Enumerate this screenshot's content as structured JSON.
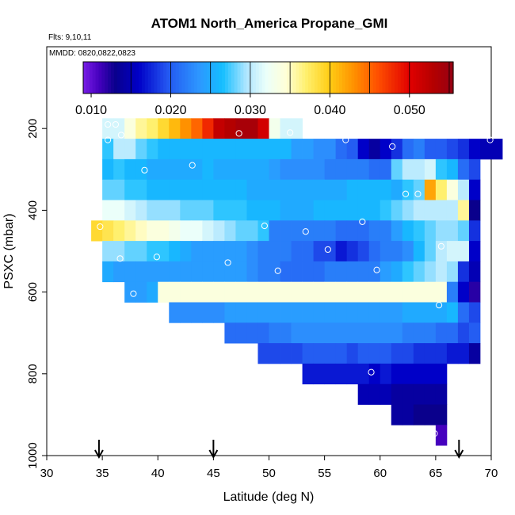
{
  "chart_data": {
    "type": "heatmap",
    "title": "ATOM1 North_America Propane_GMI",
    "notes": [
      "Flts: 9,10,11",
      "MMDD: 0820,0822,0823"
    ],
    "xlabel": "Latitude (deg N)",
    "ylabel": "PSXC (mbar)",
    "xlim": [
      30,
      70
    ],
    "ylim": [
      1000,
      0
    ],
    "xticks": [
      30,
      35,
      40,
      45,
      50,
      55,
      60,
      65,
      70
    ],
    "yticks": [
      200,
      400,
      600,
      800,
      1000
    ],
    "colorbar": {
      "min": 0.009,
      "max": 0.0555,
      "ticks": [
        0.01,
        0.02,
        0.03,
        0.04,
        0.05
      ],
      "tick_labels": [
        "0.010",
        "0.020",
        "0.030",
        "0.040",
        "0.050"
      ],
      "major_lines": [
        0.015,
        0.02,
        0.025,
        0.03,
        0.035,
        0.04,
        0.045,
        0.05,
        0.055
      ]
    },
    "cell_size": {
      "lat": 1,
      "pressure": 50
    },
    "rows": [
      {
        "pressure": 200,
        "start": 35,
        "values": [
          0.031,
          0.031,
          0.034,
          0.036,
          0.037,
          0.039,
          0.041,
          0.043,
          0.045,
          0.048,
          0.052,
          0.053,
          0.054,
          0.054,
          0.051,
          0.033,
          0.031,
          0.031
        ]
      },
      {
        "pressure": 250,
        "start": 35,
        "values": [
          0.027,
          0.03,
          0.03,
          0.028,
          0.027,
          0.026,
          0.026,
          0.026,
          0.026,
          0.026,
          0.026,
          0.026,
          0.026,
          0.026,
          0.026,
          0.026,
          0.026,
          0.024,
          0.024,
          0.023,
          0.023,
          0.021,
          0.02,
          0.016,
          0.014,
          0.016,
          0.018,
          0.021,
          0.022,
          0.02,
          0.02,
          0.019,
          0.018,
          0.016,
          0.015,
          0.015
        ]
      },
      {
        "pressure": 300,
        "start": 35,
        "values": [
          0.026,
          0.027,
          0.026,
          0.026,
          0.025,
          0.025,
          0.025,
          0.025,
          0.025,
          0.026,
          0.025,
          0.025,
          0.025,
          0.025,
          0.025,
          0.024,
          0.023,
          0.023,
          0.023,
          0.023,
          0.022,
          0.022,
          0.022,
          0.022,
          0.021,
          0.021,
          0.028,
          0.03,
          0.03,
          0.031,
          0.027,
          0.026,
          0.021,
          0.019
        ]
      },
      {
        "pressure": 350,
        "start": 35,
        "values": [
          0.028,
          0.028,
          0.027,
          0.027,
          0.026,
          0.026,
          0.026,
          0.026,
          0.026,
          0.026,
          0.026,
          0.026,
          0.026,
          0.025,
          0.025,
          0.025,
          0.025,
          0.025,
          0.025,
          0.025,
          0.025,
          0.025,
          0.026,
          0.026,
          0.026,
          0.026,
          0.025,
          0.027,
          0.028,
          0.042,
          0.037,
          0.034,
          0.03,
          0.016
        ]
      },
      {
        "pressure": 400,
        "start": 35,
        "values": [
          0.032,
          0.032,
          0.031,
          0.03,
          0.029,
          0.029,
          0.029,
          0.028,
          0.028,
          0.028,
          0.027,
          0.027,
          0.027,
          0.026,
          0.026,
          0.026,
          0.025,
          0.025,
          0.025,
          0.026,
          0.026,
          0.026,
          0.026,
          0.026,
          0.026,
          0.027,
          0.028,
          0.029,
          0.03,
          0.03,
          0.03,
          0.03,
          0.036,
          0.013
        ]
      },
      {
        "pressure": 450,
        "start": 34,
        "values": [
          0.039,
          0.038,
          0.037,
          0.036,
          0.035,
          0.034,
          0.034,
          0.033,
          0.032,
          0.032,
          0.031,
          0.03,
          0.029,
          0.028,
          0.028,
          0.027,
          0.022,
          0.022,
          0.022,
          0.022,
          0.022,
          0.022,
          0.021,
          0.021,
          0.021,
          0.022,
          0.022,
          0.024,
          0.026,
          0.027,
          0.028,
          0.029,
          0.029,
          0.028,
          0.018
        ]
      },
      {
        "pressure": 500,
        "start": 35,
        "values": [
          0.029,
          0.029,
          0.028,
          0.028,
          0.027,
          0.027,
          0.026,
          0.025,
          0.024,
          0.024,
          0.024,
          0.024,
          0.024,
          0.023,
          0.022,
          0.022,
          0.022,
          0.021,
          0.021,
          0.019,
          0.019,
          0.017,
          0.018,
          0.019,
          0.021,
          0.022,
          0.022,
          0.023,
          0.026,
          0.028,
          0.03,
          0.031,
          0.031,
          0.016
        ]
      },
      {
        "pressure": 550,
        "start": 35,
        "values": [
          0.025,
          0.024,
          0.024,
          0.024,
          0.024,
          0.024,
          0.024,
          0.024,
          0.024,
          0.024,
          0.024,
          0.024,
          0.024,
          0.023,
          0.022,
          0.022,
          0.021,
          0.021,
          0.021,
          0.021,
          0.022,
          0.022,
          0.022,
          0.022,
          0.022,
          0.024,
          0.025,
          0.027,
          0.028,
          0.029,
          0.03,
          0.029,
          0.018,
          0.015
        ]
      },
      {
        "pressure": 600,
        "start": 37,
        "values": [
          0.024,
          0.024,
          0.025,
          0.034,
          0.034,
          0.034,
          0.034,
          0.034,
          0.034,
          0.034,
          0.034,
          0.034,
          0.034,
          0.034,
          0.034,
          0.034,
          0.034,
          0.034,
          0.034,
          0.034,
          0.034,
          0.034,
          0.034,
          0.034,
          0.034,
          0.034,
          0.034,
          0.034,
          0.034,
          0.022,
          0.016,
          0.012
        ]
      },
      {
        "pressure": 650,
        "start": 41,
        "values": [
          0.023,
          0.023,
          0.023,
          0.023,
          0.023,
          0.024,
          0.024,
          0.024,
          0.024,
          0.024,
          0.024,
          0.024,
          0.024,
          0.024,
          0.024,
          0.024,
          0.024,
          0.024,
          0.024,
          0.024,
          0.024,
          0.025,
          0.025,
          0.025,
          0.025,
          0.026,
          0.021,
          0.019
        ]
      },
      {
        "pressure": 700,
        "start": 46,
        "values": [
          0.021,
          0.021,
          0.021,
          0.021,
          0.022,
          0.022,
          0.023,
          0.023,
          0.023,
          0.023,
          0.023,
          0.023,
          0.023,
          0.023,
          0.023,
          0.023,
          0.022,
          0.022,
          0.022,
          0.021,
          0.021,
          0.019,
          0.02
        ]
      },
      {
        "pressure": 750,
        "start": 49,
        "values": [
          0.019,
          0.019,
          0.019,
          0.019,
          0.02,
          0.02,
          0.02,
          0.02,
          0.019,
          0.02,
          0.02,
          0.02,
          0.019,
          0.019,
          0.018,
          0.018,
          0.018,
          0.017,
          0.017,
          0.014
        ]
      },
      {
        "pressure": 800,
        "start": 53,
        "values": [
          0.017,
          0.017,
          0.017,
          0.017,
          0.017,
          0.017,
          0.016,
          0.017,
          0.016,
          0.016,
          0.016,
          0.016,
          0.016
        ]
      },
      {
        "pressure": 850,
        "start": 58,
        "values": [
          0.015,
          0.015,
          0.015,
          0.014,
          0.014,
          0.014,
          0.014,
          0.014
        ]
      },
      {
        "pressure": 900,
        "start": 61,
        "values": [
          0.014,
          0.014,
          0.013,
          0.013,
          0.013
        ]
      },
      {
        "pressure": 950,
        "start": 65,
        "values": [
          0.011
        ]
      }
    ],
    "points": [
      {
        "lat": 35.5,
        "p": 190
      },
      {
        "lat": 36.2,
        "p": 190
      },
      {
        "lat": 35.5,
        "p": 228
      },
      {
        "lat": 36.7,
        "p": 216
      },
      {
        "lat": 47.3,
        "p": 212
      },
      {
        "lat": 51.9,
        "p": 210
      },
      {
        "lat": 56.9,
        "p": 228
      },
      {
        "lat": 61.1,
        "p": 244
      },
      {
        "lat": 69.9,
        "p": 228
      },
      {
        "lat": 38.8,
        "p": 302
      },
      {
        "lat": 43.1,
        "p": 290
      },
      {
        "lat": 62.3,
        "p": 360
      },
      {
        "lat": 63.4,
        "p": 360
      },
      {
        "lat": 34.8,
        "p": 440
      },
      {
        "lat": 49.6,
        "p": 438
      },
      {
        "lat": 53.3,
        "p": 452
      },
      {
        "lat": 58.4,
        "p": 428
      },
      {
        "lat": 55.3,
        "p": 496
      },
      {
        "lat": 65.5,
        "p": 488
      },
      {
        "lat": 36.6,
        "p": 518
      },
      {
        "lat": 39.9,
        "p": 514
      },
      {
        "lat": 46.3,
        "p": 528
      },
      {
        "lat": 50.8,
        "p": 548
      },
      {
        "lat": 59.7,
        "p": 546
      },
      {
        "lat": 37.8,
        "p": 604
      },
      {
        "lat": 65.3,
        "p": 632
      },
      {
        "lat": 59.2,
        "p": 796
      },
      {
        "lat": 64.9,
        "p": 946
      }
    ],
    "arrows": [
      34.7,
      45.0,
      67.1
    ]
  }
}
